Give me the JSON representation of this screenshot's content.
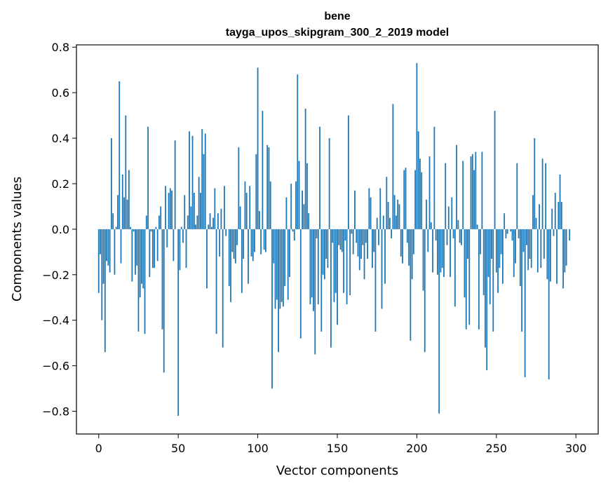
{
  "chart_data": {
    "type": "bar",
    "title": "bene",
    "subtitle": "tayga_upos_skipgram_300_2_2019 model",
    "xlabel": "Vector components",
    "ylabel": "Components values",
    "xlim": [
      -14,
      314
    ],
    "ylim": [
      -0.9,
      0.81
    ],
    "x_ticks": [
      0,
      50,
      100,
      150,
      200,
      250,
      300
    ],
    "x_tick_labels": [
      "0",
      "50",
      "100",
      "150",
      "200",
      "250",
      "300"
    ],
    "y_ticks": [
      0.8,
      0.6,
      0.4,
      0.2,
      0.0,
      -0.2,
      -0.4,
      -0.6,
      -0.8
    ],
    "y_tick_labels": [
      "0.8",
      "0.6",
      "0.4",
      "0.2",
      "0.0",
      "−0.2",
      "−0.4",
      "−0.6",
      "−0.8"
    ],
    "bar_color": "#1f77b4",
    "grid": false,
    "x": "0..299 (one bar per vector component)",
    "values": [
      -0.28,
      -0.11,
      -0.4,
      -0.24,
      -0.54,
      -0.14,
      -0.16,
      -0.19,
      0.4,
      0.07,
      -0.2,
      0.01,
      0.15,
      0.65,
      -0.15,
      0.24,
      0.14,
      0.5,
      0.13,
      0.26,
      0.01,
      -0.23,
      -0.01,
      -0.2,
      -0.16,
      -0.45,
      -0.3,
      -0.24,
      -0.26,
      -0.46,
      0.06,
      0.45,
      -0.21,
      -0.01,
      -0.17,
      -0.17,
      0.01,
      -0.14,
      0.06,
      0.1,
      -0.44,
      -0.63,
      0.19,
      -0.08,
      0.16,
      0.18,
      0.17,
      -0.14,
      0.39,
      0.0,
      -0.82,
      -0.18,
      0.01,
      -0.06,
      0.15,
      -0.17,
      0.06,
      0.43,
      0.1,
      0.41,
      0.16,
      0.02,
      0.06,
      0.23,
      0.16,
      0.44,
      0.33,
      0.42,
      -0.26,
      0.02,
      0.07,
      0.01,
      0.05,
      0.18,
      -0.46,
      0.07,
      -0.12,
      0.09,
      -0.52,
      0.19,
      -0.03,
      0.0,
      -0.25,
      -0.32,
      -0.1,
      -0.13,
      -0.15,
      -0.07,
      0.36,
      0.1,
      -0.28,
      -0.13,
      0.21,
      0.16,
      -0.24,
      0.19,
      -0.12,
      -0.14,
      -0.1,
      0.33,
      0.71,
      0.08,
      -0.11,
      0.52,
      -0.09,
      -0.1,
      0.37,
      0.36,
      0.21,
      -0.7,
      -0.15,
      -0.35,
      -0.31,
      -0.54,
      -0.35,
      -0.32,
      -0.34,
      -0.25,
      0.14,
      -0.31,
      -0.21,
      0.2,
      -0.01,
      -0.05,
      0.21,
      0.68,
      0.3,
      -0.48,
      0.17,
      0.11,
      0.53,
      0.29,
      0.07,
      -0.33,
      -0.3,
      -0.36,
      -0.55,
      -0.04,
      -0.33,
      0.45,
      -0.45,
      -0.2,
      -0.22,
      -0.13,
      -0.17,
      0.4,
      -0.52,
      -0.06,
      -0.32,
      -0.28,
      -0.42,
      -0.07,
      -0.09,
      -0.1,
      -0.28,
      -0.05,
      -0.33,
      0.5,
      -0.29,
      -0.02,
      -0.11,
      0.17,
      -0.06,
      -0.12,
      -0.18,
      -0.13,
      -0.07,
      -0.22,
      -0.06,
      -0.13,
      0.18,
      0.14,
      -0.17,
      -0.1,
      -0.45,
      0.05,
      -0.07,
      0.18,
      -0.35,
      0.06,
      -0.24,
      0.23,
      0.12,
      0.05,
      -0.04,
      0.55,
      0.15,
      0.06,
      0.13,
      0.11,
      -0.12,
      -0.15,
      0.26,
      0.27,
      -0.06,
      -0.16,
      -0.49,
      -0.22,
      -0.11,
      0.26,
      0.73,
      0.43,
      0.31,
      0.25,
      -0.27,
      -0.54,
      0.13,
      -0.1,
      0.32,
      0.03,
      -0.19,
      0.45,
      -0.05,
      -0.2,
      -0.81,
      -0.19,
      -0.17,
      -0.21,
      0.29,
      -0.07,
      0.1,
      -0.21,
      0.14,
      -0.04,
      -0.34,
      0.37,
      0.04,
      -0.06,
      -0.07,
      0.3,
      -0.3,
      -0.44,
      -0.13,
      -0.42,
      0.32,
      0.33,
      0.26,
      0.34,
      0.02,
      -0.44,
      -0.11,
      0.34,
      -0.29,
      -0.52,
      -0.62,
      -0.21,
      -0.33,
      -0.13,
      -0.45,
      0.52,
      -0.19,
      -0.28,
      -0.17,
      -0.11,
      -0.24,
      0.07,
      -0.04,
      -0.02,
      0.0,
      -0.01,
      -0.05,
      -0.21,
      -0.15,
      0.29,
      -0.04,
      -0.25,
      -0.45,
      -0.1,
      -0.65,
      -0.07,
      -0.18,
      -0.13,
      -0.17,
      0.15,
      0.4,
      0.05,
      -0.19,
      0.11,
      -0.17,
      0.31,
      -0.13,
      0.29,
      -0.22,
      -0.66,
      -0.23,
      0.09,
      -0.03,
      0.16,
      -0.24,
      0.12,
      0.24,
      0.12,
      -0.26,
      -0.19,
      -0.16,
      0.0,
      -0.05,
      0.0,
      0.0,
      0.0
    ]
  }
}
